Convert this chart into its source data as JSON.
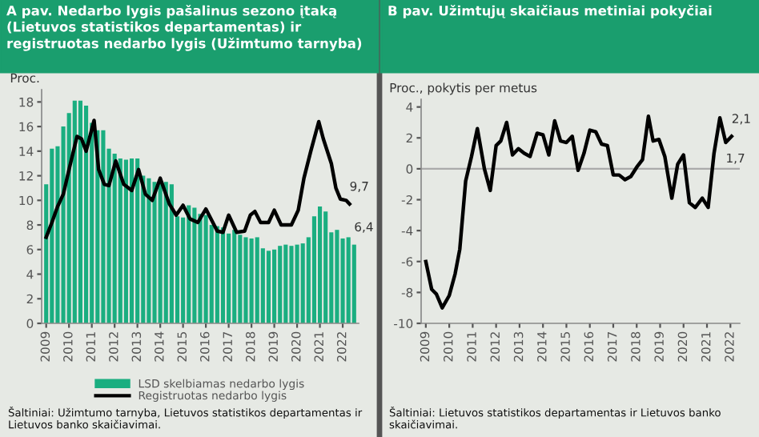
{
  "chart_data": [
    {
      "type": "bar",
      "title": "A pav. Nedarbo lygis pašalinus sezono įtaką\n(Lietuvos statistikos departamentas) ir\nregistruotas nedarbo lygis (Užimtumo tarnyba)",
      "ylabel": "Proc.",
      "x": [
        2009.0,
        2009.25,
        2009.5,
        2009.75,
        2010.0,
        2010.25,
        2010.5,
        2010.75,
        2011.0,
        2011.25,
        2011.5,
        2011.75,
        2012.0,
        2012.25,
        2012.5,
        2012.75,
        2013.0,
        2013.25,
        2013.5,
        2013.75,
        2014.0,
        2014.25,
        2014.5,
        2014.75,
        2015.0,
        2015.25,
        2015.5,
        2015.75,
        2016.0,
        2016.25,
        2016.5,
        2016.75,
        2017.0,
        2017.25,
        2017.5,
        2017.75,
        2018.0,
        2018.25,
        2018.5,
        2018.75,
        2019.0,
        2019.25,
        2019.5,
        2019.75,
        2020.0,
        2020.25,
        2020.5,
        2020.75,
        2021.0,
        2021.25,
        2021.5,
        2021.75,
        2022.0,
        2022.25,
        2022.5
      ],
      "series": [
        {
          "name": "LSD skelbiamas nedarbo lygis",
          "type": "bar",
          "color": "#1aae80",
          "values": [
            11.3,
            14.2,
            14.4,
            16.0,
            17.1,
            18.1,
            18.1,
            17.7,
            16.3,
            15.7,
            15.7,
            14.2,
            13.8,
            13.4,
            13.3,
            13.4,
            13.4,
            12.0,
            11.8,
            11.5,
            11.4,
            11.5,
            11.3,
            8.7,
            8.6,
            9.6,
            9.4,
            8.9,
            8.8,
            8.0,
            7.9,
            7.8,
            7.3,
            7.6,
            7.2,
            7.0,
            6.9,
            7.0,
            6.1,
            5.9,
            6.0,
            6.3,
            6.4,
            6.3,
            6.4,
            6.5,
            7.0,
            8.7,
            9.5,
            9.1,
            7.4,
            7.6,
            6.9,
            7.0,
            6.4
          ]
        },
        {
          "name": "Registruotas nedarbo lygis",
          "type": "line",
          "color": "#000000",
          "x": [
            2009.0,
            2009.25,
            2009.5,
            2009.75,
            2010.0,
            2010.35,
            2010.55,
            2010.75,
            2011.1,
            2011.3,
            2011.55,
            2011.75,
            2012.05,
            2012.4,
            2012.75,
            2013.05,
            2013.35,
            2013.65,
            2014.0,
            2014.4,
            2014.7,
            2015.0,
            2015.3,
            2015.65,
            2016.0,
            2016.5,
            2016.75,
            2017.0,
            2017.35,
            2017.7,
            2017.95,
            2018.15,
            2018.4,
            2018.75,
            2019.0,
            2019.3,
            2019.75,
            2020.05,
            2020.3,
            2020.6,
            2020.95,
            2021.15,
            2021.5,
            2021.7,
            2021.9,
            2022.15,
            2022.3
          ],
          "values": [
            7.0,
            8.2,
            9.5,
            10.5,
            12.5,
            15.2,
            15.0,
            14.0,
            16.5,
            12.5,
            11.3,
            11.2,
            13.2,
            11.3,
            10.8,
            12.5,
            10.5,
            10.0,
            11.8,
            9.7,
            8.8,
            9.6,
            8.5,
            8.2,
            9.3,
            7.5,
            7.4,
            8.8,
            7.4,
            7.5,
            8.8,
            9.1,
            8.2,
            8.2,
            9.2,
            8.0,
            8.0,
            9.2,
            11.8,
            14.0,
            16.4,
            15.0,
            13.0,
            11.0,
            10.1,
            10.0,
            9.7
          ]
        }
      ],
      "xlim": [
        2008.8,
        2022.7
      ],
      "xticks": [
        2009,
        2010,
        2011,
        2012,
        2013,
        2014,
        2015,
        2016,
        2017,
        2018,
        2019,
        2020,
        2021,
        2022
      ],
      "ylim": [
        0,
        19
      ],
      "yticks": [
        0,
        2,
        4,
        6,
        8,
        10,
        12,
        14,
        16,
        18
      ],
      "grid": false,
      "legend": "bottom",
      "annotations": [
        {
          "text": "9,7",
          "x": 2022.3,
          "y": 9.7
        },
        {
          "text": "6,4",
          "x": 2022.5,
          "y": 6.4
        },
        "Šaltiniai: Užimtumo tarnyba, Lietuvos statistikos departamentas ir\nLietuvos banko skaičiavimai."
      ]
    },
    {
      "type": "line",
      "title": "B pav. Užimtųjų skaičiaus metiniai pokyčiai",
      "ylabel": "Proc., pokytis per metus",
      "x": [
        2009.0,
        2009.25,
        2009.45,
        2009.7,
        2010.0,
        2010.25,
        2010.45,
        2010.7,
        2010.95,
        2011.2,
        2011.5,
        2011.75,
        2012.0,
        2012.2,
        2012.45,
        2012.7,
        2012.95,
        2013.2,
        2013.45,
        2013.75,
        2014.0,
        2014.25,
        2014.5,
        2014.75,
        2015.0,
        2015.25,
        2015.5,
        2015.75,
        2016.0,
        2016.25,
        2016.5,
        2016.75,
        2017.0,
        2017.25,
        2017.5,
        2017.75,
        2018.0,
        2018.25,
        2018.5,
        2018.7,
        2018.95,
        2019.2,
        2019.5,
        2019.75,
        2020.0,
        2020.25,
        2020.5,
        2020.8,
        2021.05,
        2021.3,
        2021.55,
        2021.8,
        2022.05
      ],
      "series": [
        {
          "color": "#000000",
          "values": [
            -6.0,
            -7.8,
            -8.1,
            -9.0,
            -8.2,
            -6.8,
            -5.2,
            -0.8,
            0.8,
            2.6,
            0.0,
            -1.4,
            1.5,
            1.8,
            3.0,
            0.9,
            1.3,
            1.0,
            0.8,
            2.3,
            2.2,
            0.9,
            3.1,
            1.8,
            1.7,
            2.1,
            -0.1,
            1.0,
            2.5,
            2.4,
            1.6,
            1.5,
            -0.4,
            -0.4,
            -0.7,
            -0.5,
            0.1,
            0.6,
            3.4,
            1.8,
            1.9,
            0.8,
            -1.9,
            0.3,
            0.9,
            -2.2,
            -2.5,
            -1.9,
            -2.5,
            1.0,
            3.3,
            1.7,
            2.1
          ]
        }
      ],
      "xlim": [
        2008.8,
        2022.4
      ],
      "xticks": [
        2009,
        2010,
        2011,
        2012,
        2013,
        2014,
        2015,
        2016,
        2017,
        2018,
        2019,
        2020,
        2021,
        2022
      ],
      "ylim": [
        -10,
        4.5
      ],
      "yticks": [
        -10,
        -8,
        -6,
        -4,
        -2,
        0,
        2,
        4
      ],
      "grid": false,
      "ref_lines": [
        {
          "axis": "y",
          "value": 0,
          "color": "#aaaaaa"
        }
      ],
      "annotations": [
        {
          "text": "2,1",
          "x": 2022.05,
          "y": 2.1
        },
        {
          "text": "1,7",
          "x": 2021.8,
          "y": 1.7
        },
        "Šaltiniai: Lietuvos statistikos departamentas ir Lietuvos banko\nskaičiavimai."
      ]
    }
  ]
}
